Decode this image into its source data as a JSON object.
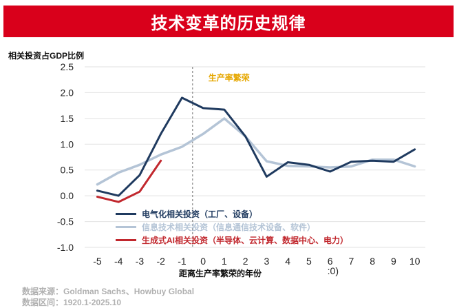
{
  "header": {
    "title": "技术变革的历史规律"
  },
  "chart_data": {
    "type": "line",
    "title": "技术变革的历史规律",
    "ylabel": "相关投资占GDP比例",
    "xlabel": "距离生产率繁荣的年份",
    "ylim": [
      -1.0,
      2.5
    ],
    "xlim": [
      -5,
      10
    ],
    "yticks": [
      "2.5",
      "2.0",
      "1.5",
      "1.0",
      "0.5",
      "0.0",
      "-0.5",
      "-1.0"
    ],
    "ytick_values": [
      2.5,
      2.0,
      1.5,
      1.0,
      0.5,
      0.0,
      -0.5,
      -1.0
    ],
    "xticks": [
      "-5",
      "-4",
      "-3",
      "-2",
      "-1",
      "0",
      "1",
      "2",
      "3",
      "4",
      "5",
      "6",
      "7",
      "8",
      "9",
      "10"
    ],
    "xtick_values": [
      -5,
      -4,
      -3,
      -2,
      -1,
      0,
      1,
      2,
      3,
      4,
      5,
      6,
      7,
      8,
      9,
      10
    ],
    "grid": true,
    "reference_line": {
      "x": -0.5,
      "label": "生产率繁荣",
      "color": "#e6a700"
    },
    "series": [
      {
        "name": "电气化相关投资（工厂、设备）",
        "color": "#1f3a5f",
        "x": [
          -5,
          -4,
          -3,
          -2,
          -1,
          0,
          1,
          2,
          3,
          4,
          5,
          6,
          7,
          8,
          9,
          10
        ],
        "values": [
          0.1,
          0.0,
          0.4,
          1.2,
          1.9,
          1.7,
          1.67,
          1.15,
          0.37,
          0.65,
          0.6,
          0.47,
          0.66,
          0.68,
          0.66,
          0.9
        ]
      },
      {
        "name": "信息技术相关投资（信息通信技术设备、软件）",
        "color": "#b4c4d6",
        "x": [
          -5,
          -4,
          -3,
          -2,
          -1,
          0,
          1,
          2,
          3,
          4,
          5,
          6,
          7,
          8,
          9,
          10
        ],
        "values": [
          0.22,
          0.45,
          0.6,
          0.8,
          0.95,
          1.2,
          1.5,
          1.15,
          0.67,
          0.58,
          0.57,
          0.55,
          0.57,
          0.7,
          0.7,
          0.57
        ]
      },
      {
        "name": "生成式AI相关投资（半导体、云计算、数据中心、电力）",
        "color": "#c1272d",
        "x": [
          -5,
          -4,
          -3,
          -2
        ],
        "values": [
          -0.02,
          -0.12,
          0.08,
          0.68
        ]
      }
    ],
    "annotations": [
      ":0)"
    ]
  },
  "footer": {
    "source_line": "数据来源：Goldman Sachs、Howbuy Global",
    "range_line": "数据区间：1920.1-2025.10"
  }
}
